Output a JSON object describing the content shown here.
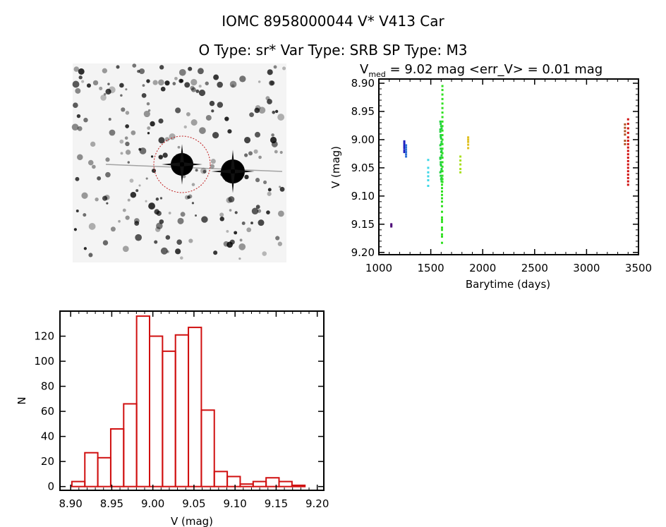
{
  "title": "IOMC 8958000044    V* V413 Car",
  "subtitle": "O Type: sr*  Var Type: SRB  SP Type: M3",
  "chart_data": [
    {
      "type": "scatter",
      "title_main": "V",
      "title_sub": "med",
      "title_rest": " = 9.02 mag <err_V> = 0.01 mag",
      "xlabel": "Barytime (days)",
      "ylabel": "V (mag)",
      "xlim": [
        1000,
        3500
      ],
      "ylim": [
        9.204,
        8.8925
      ],
      "xticks": [
        "1000",
        "1500",
        "2000",
        "2500",
        "3000",
        "3500"
      ],
      "xtick_values": [
        1000,
        1500,
        2000,
        2500,
        3000,
        3500
      ],
      "yticks": [
        "8.90",
        "8.95",
        "9.00",
        "9.05",
        "9.10",
        "9.15",
        "9.20"
      ],
      "ytick_values": [
        8.9,
        8.95,
        9.0,
        9.05,
        9.1,
        9.15,
        9.2
      ],
      "series": [
        {
          "color": "#50107a",
          "x": [
            1120,
            1120,
            1120
          ],
          "y": [
            9.15,
            9.152,
            9.154
          ]
        },
        {
          "color": "#2020c0",
          "x": [
            1245,
            1245,
            1245,
            1245,
            1245,
            1245,
            1245
          ],
          "y": [
            9.003,
            9.006,
            9.009,
            9.012,
            9.015,
            9.019,
            9.022
          ]
        },
        {
          "color": "#3070d8",
          "x": [
            1262,
            1262,
            1262,
            1262,
            1262,
            1262
          ],
          "y": [
            9.01,
            9.014,
            9.018,
            9.022,
            9.026,
            9.03
          ]
        },
        {
          "color": "#40d8e8",
          "x": [
            1475,
            1475,
            1475,
            1475,
            1475,
            1475
          ],
          "y": [
            9.036,
            9.05,
            9.058,
            9.065,
            9.072,
            9.082
          ]
        },
        {
          "color": "#20d040",
          "x": [
            1592,
            1596,
            1600,
            1604,
            1592,
            1596,
            1600,
            1604,
            1592,
            1596,
            1600,
            1604,
            1592,
            1596,
            1600,
            1604,
            1592,
            1596,
            1600,
            1604,
            1592,
            1596,
            1600,
            1604,
            1592,
            1596,
            1600,
            1604
          ],
          "y": [
            8.968,
            8.972,
            8.976,
            8.98,
            8.986,
            8.992,
            8.998,
            9.004,
            9.01,
            9.016,
            9.022,
            9.028,
            9.034,
            9.04,
            9.046,
            9.052,
            9.058,
            9.064,
            9.07,
            9.074,
            8.982,
            8.995,
            9.008,
            9.02,
            9.032,
            9.044,
            9.056,
            9.068
          ]
        },
        {
          "color": "#30e020",
          "x": [
            1612,
            1612,
            1612,
            1612,
            1612,
            1612,
            1612,
            1612,
            1612,
            1612,
            1612,
            1612,
            1612,
            1612,
            1612,
            1612,
            1612,
            1612,
            1612,
            1612,
            1612,
            1612,
            1612,
            1608,
            1608,
            1608,
            1608,
            1608,
            1608,
            1608,
            1608,
            1608,
            1608,
            1608,
            1608,
            1608,
            1608,
            1608,
            1608
          ],
          "y": [
            8.905,
            8.912,
            8.92,
            8.928,
            8.936,
            8.944,
            8.952,
            8.96,
            8.968,
            8.976,
            8.984,
            8.992,
            9.0,
            9.008,
            9.016,
            9.024,
            9.032,
            9.04,
            9.048,
            9.056,
            9.064,
            9.07,
            9.075,
            9.08,
            9.086,
            9.092,
            9.098,
            9.104,
            9.11,
            9.118,
            9.128,
            9.138,
            9.142,
            9.146,
            9.156,
            9.16,
            9.168,
            9.172,
            9.183
          ]
        },
        {
          "color": "#a8e020",
          "x": [
            1785,
            1785,
            1785,
            1785,
            1785
          ],
          "y": [
            9.03,
            9.037,
            9.044,
            9.052,
            9.058
          ]
        },
        {
          "color": "#e0c020",
          "x": [
            1860,
            1860,
            1860,
            1860,
            1860
          ],
          "y": [
            8.996,
            9.0,
            9.004,
            9.009,
            9.015
          ]
        },
        {
          "color": "#b05020",
          "x": [
            3370,
            3370,
            3370,
            3370,
            3370,
            3370
          ],
          "y": [
            8.973,
            8.979,
            8.985,
            8.991,
            9.002,
            9.008
          ]
        },
        {
          "color": "#d01010",
          "x": [
            3400,
            3400,
            3400,
            3400,
            3400,
            3400,
            3400,
            3400,
            3400,
            3400,
            3400,
            3400,
            3400,
            3400,
            3400,
            3400,
            3400,
            3400,
            3400
          ],
          "y": [
            8.964,
            8.972,
            8.98,
            8.988,
            8.996,
            9.002,
            9.008,
            9.014,
            9.02,
            9.026,
            9.032,
            9.038,
            9.044,
            9.05,
            9.056,
            9.062,
            9.068,
            9.074,
            9.08
          ]
        }
      ]
    },
    {
      "type": "bar",
      "subtype": "histogram",
      "xlabel": "V (mag)",
      "ylabel": "N",
      "xlim": [
        8.887,
        9.208
      ],
      "ylim": [
        -3,
        140
      ],
      "bin_start": 8.9015,
      "bin_width": 0.01575,
      "values": [
        4,
        27,
        23,
        46,
        66,
        136,
        120,
        108,
        121,
        127,
        61,
        12,
        8,
        2,
        4,
        7,
        4,
        1
      ],
      "bar_color": "#d01010",
      "xticks": [
        "8.90",
        "8.95",
        "9.00",
        "9.05",
        "9.10",
        "9.15",
        "9.20"
      ],
      "xtick_values": [
        8.9,
        8.95,
        9.0,
        9.05,
        9.1,
        9.15,
        9.2
      ],
      "yticks": [
        "0",
        "20",
        "40",
        "60",
        "80",
        "100",
        "120"
      ],
      "ytick_values": [
        0,
        20,
        40,
        60,
        80,
        100,
        120
      ]
    }
  ]
}
